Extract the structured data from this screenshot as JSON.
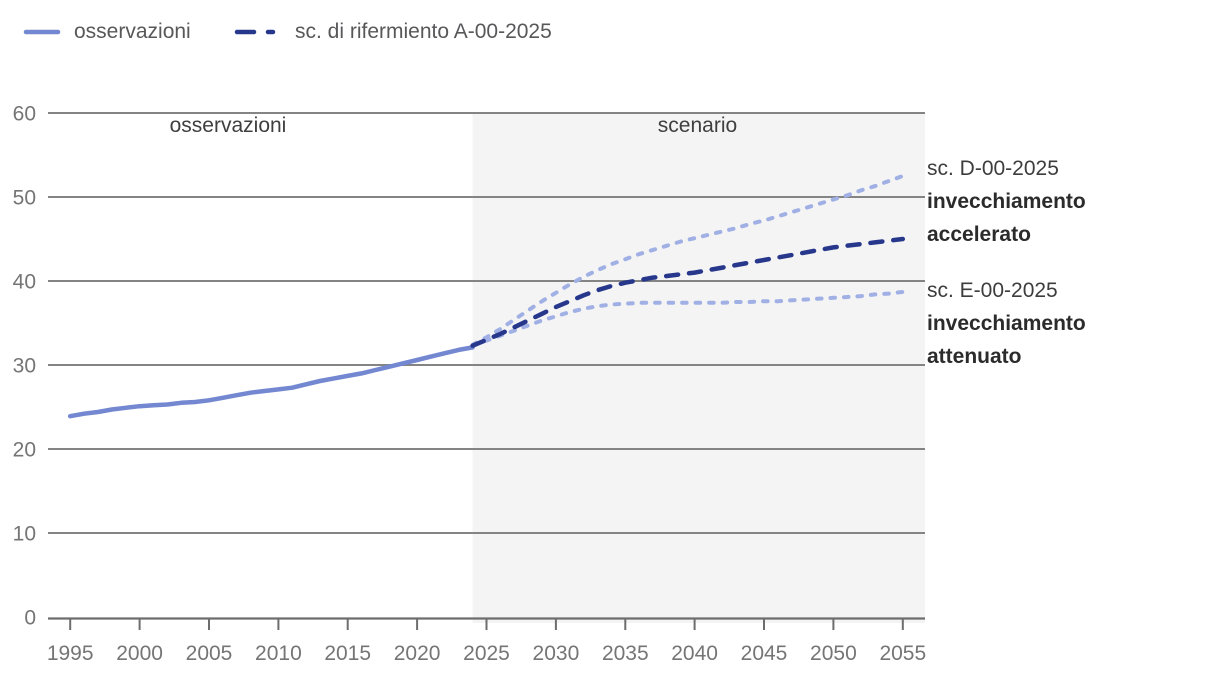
{
  "legend": {
    "items": [
      {
        "label": "osservazioni",
        "color": "#7488d2",
        "style": "solid"
      },
      {
        "label": "sc. di rifermiento A-00-2025",
        "color": "#27388c",
        "style": "long-dash"
      }
    ]
  },
  "annotations": {
    "d": {
      "title": "sc. D-00-2025",
      "bold1": "invecchiamento",
      "bold2": "accelerato"
    },
    "e": {
      "title": "sc. E-00-2025",
      "bold1": "invecchiamento",
      "bold2": "attenuato"
    }
  },
  "chart_data": {
    "type": "line",
    "title": "",
    "xlabel": "",
    "ylabel": "",
    "x_range": [
      1993.4,
      2056.6
    ],
    "y_range": [
      0,
      60
    ],
    "x_ticks": [
      1995,
      2000,
      2005,
      2010,
      2015,
      2020,
      2025,
      2030,
      2035,
      2040,
      2045,
      2050,
      2055
    ],
    "y_ticks": [
      0,
      10,
      20,
      30,
      40,
      50,
      60
    ],
    "grid": "horizontal",
    "legend_position": "top-left",
    "regions": [
      {
        "label": "osservazioni",
        "x_start": 1993.4,
        "x_end": 2024,
        "background": "#ffffff"
      },
      {
        "label": "scenario",
        "x_start": 2024,
        "x_end": 2056.6,
        "background": "#f4f4f4"
      }
    ],
    "series": [
      {
        "name": "osservazioni",
        "style": "solid",
        "color": "#7488d2",
        "x_start": 1995,
        "x_step": 1,
        "values": [
          23.9,
          24.2,
          24.4,
          24.7,
          24.9,
          25.1,
          25.2,
          25.3,
          25.5,
          25.6,
          25.8,
          26.1,
          26.4,
          26.7,
          26.9,
          27.1,
          27.3,
          27.7,
          28.1,
          28.4,
          28.7,
          29.0,
          29.4,
          29.8,
          30.2,
          30.6,
          31.0,
          31.4,
          31.8,
          32.1
        ]
      },
      {
        "name": "sc. di rifermiento A-00-2025",
        "style": "long-dash",
        "color": "#27388c",
        "x_start": 2024,
        "x_step": 1,
        "values": [
          32.3,
          33.0,
          33.7,
          34.5,
          35.3,
          36.1,
          36.9,
          37.6,
          38.3,
          38.9,
          39.4,
          39.8,
          40.1,
          40.4,
          40.6,
          40.8,
          41.0,
          41.3,
          41.6,
          41.9,
          42.2,
          42.5,
          42.8,
          43.1,
          43.4,
          43.7,
          44.0,
          44.2,
          44.4,
          44.6,
          44.8,
          45.0
        ]
      },
      {
        "name": "sc. D-00-2025 invecchiamento accelerato",
        "style": "short-dash",
        "color": "#a0b0e4",
        "x_start": 2024,
        "x_step": 1,
        "values": [
          32.4,
          33.3,
          34.3,
          35.4,
          36.5,
          37.6,
          38.6,
          39.6,
          40.5,
          41.3,
          42.0,
          42.6,
          43.2,
          43.7,
          44.2,
          44.7,
          45.1,
          45.5,
          45.9,
          46.3,
          46.8,
          47.2,
          47.7,
          48.2,
          48.7,
          49.2,
          49.7,
          50.2,
          50.8,
          51.3,
          51.9,
          52.5
        ]
      },
      {
        "name": "sc. E-00-2025 invecchiamento attenuato",
        "style": "short-dash",
        "color": "#a0b0e4",
        "x_start": 2024,
        "x_step": 1,
        "values": [
          32.3,
          32.9,
          33.5,
          34.1,
          34.7,
          35.3,
          35.8,
          36.3,
          36.7,
          37.0,
          37.2,
          37.3,
          37.4,
          37.4,
          37.4,
          37.4,
          37.4,
          37.4,
          37.4,
          37.5,
          37.5,
          37.6,
          37.6,
          37.7,
          37.8,
          37.9,
          38.0,
          38.1,
          38.2,
          38.4,
          38.5,
          38.7
        ]
      }
    ]
  }
}
